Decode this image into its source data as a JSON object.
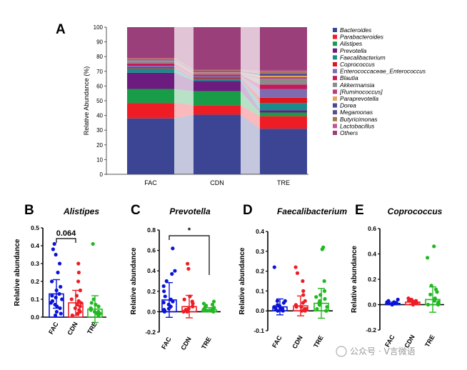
{
  "chart_data": [
    {
      "panel": "A",
      "type": "bar",
      "stacked": true,
      "ylabel": "Relative Abundance (%)",
      "ylim": [
        0,
        100
      ],
      "yticks": [
        "0",
        "10",
        "20",
        "30",
        "40",
        "50",
        "60",
        "70",
        "80",
        "90",
        "100"
      ],
      "categories": [
        "FAC",
        "CDN",
        "TRE"
      ],
      "legend_position": "right",
      "series": [
        {
          "name": "Bacteroides",
          "color": "#3b4593",
          "values": [
            38,
            40.5,
            31
          ]
        },
        {
          "name": "Parabacteroides",
          "color": "#ee1c24",
          "values": [
            10.5,
            6.5,
            8.5
          ]
        },
        {
          "name": "Alistipes",
          "color": "#189c48",
          "values": [
            9.5,
            9.5,
            2.5
          ]
        },
        {
          "name": "Prevotella",
          "color": "#6b1c7e",
          "values": [
            11,
            7,
            1.5
          ]
        },
        {
          "name": "Faecalibacterium",
          "color": "#1b8a8e",
          "values": [
            3,
            1.5,
            5
          ]
        },
        {
          "name": "Coprococcus",
          "color": "#e2141c",
          "values": [
            0.8,
            0.8,
            3.5
          ]
        },
        {
          "name": "Enterococcaceae_Enterococcus",
          "color": "#7f6bb0",
          "values": [
            1,
            1,
            6
          ]
        },
        {
          "name": "Blautia",
          "color": "#c5195a",
          "values": [
            1.5,
            1,
            3
          ]
        },
        {
          "name": "Akkermansia",
          "color": "#8b8b8b",
          "values": [
            1,
            0.5,
            4
          ]
        },
        {
          "name": "[Ruminococcus]",
          "color": "#b83a7c",
          "values": [
            0.5,
            0.5,
            1
          ]
        },
        {
          "name": "Paraprevotella",
          "color": "#e8a35a",
          "values": [
            0.5,
            0.5,
            1
          ]
        },
        {
          "name": "Dorea",
          "color": "#464a9a",
          "values": [
            0.5,
            0.5,
            1
          ]
        },
        {
          "name": "Megamonas",
          "color": "#54508a",
          "values": [
            0.3,
            0.3,
            0.5
          ]
        },
        {
          "name": "Butyricimonas",
          "color": "#a2784b",
          "values": [
            0.5,
            0.5,
            1
          ]
        },
        {
          "name": "Lactobacillus",
          "color": "#c4548e",
          "values": [
            0.5,
            0.5,
            1
          ]
        },
        {
          "name": "Others",
          "color": "#9b3f7a",
          "values": [
            20.9,
            28.9,
            29.5
          ]
        }
      ]
    },
    {
      "panel": "B",
      "type": "bar",
      "title": "Alistipes",
      "ylabel": "Relative abundance",
      "ylim": [
        0,
        0.5
      ],
      "yticks": [
        "0.0",
        "0.1",
        "0.2",
        "0.3",
        "0.4",
        "0.5"
      ],
      "categories": [
        "FAC",
        "CDN",
        "TRE"
      ],
      "colors": [
        "#0a14d8",
        "#ee1c24",
        "#22b822"
      ],
      "values": [
        0.13,
        0.08,
        0.045
      ],
      "error": [
        0.08,
        0.07,
        0.075
      ],
      "points": [
        [
          0.01,
          0.02,
          0.03,
          0.05,
          0.06,
          0.07,
          0.08,
          0.09,
          0.1,
          0.11,
          0.12,
          0.13,
          0.15,
          0.17,
          0.2,
          0.25,
          0.3,
          0.35,
          0.38,
          0.41
        ],
        [
          0.01,
          0.02,
          0.03,
          0.04,
          0.05,
          0.06,
          0.07,
          0.08,
          0.09,
          0.1,
          0.12,
          0.15,
          0.2,
          0.25,
          0.3
        ],
        [
          0.01,
          0.02,
          0.02,
          0.03,
          0.03,
          0.04,
          0.05,
          0.06,
          0.07,
          0.08,
          0.1,
          0.41
        ]
      ],
      "significance": "0.064"
    },
    {
      "panel": "C",
      "type": "bar",
      "title": "Prevotella",
      "ylabel": "Relative abundance",
      "ylim": [
        -0.2,
        0.8
      ],
      "yticks": [
        "-0.2",
        "0.0",
        "0.2",
        "0.4",
        "0.6",
        "0.8"
      ],
      "categories": [
        "FAC",
        "CDN",
        "TRE"
      ],
      "colors": [
        "#0a14d8",
        "#ee1c24",
        "#22b822"
      ],
      "values": [
        0.115,
        0.05,
        0.02
      ],
      "error": [
        0.17,
        0.11,
        0.02
      ],
      "points": [
        [
          0.0,
          0.01,
          0.02,
          0.03,
          0.05,
          0.07,
          0.09,
          0.1,
          0.12,
          0.15,
          0.2,
          0.25,
          0.3,
          0.37,
          0.4,
          0.62
        ],
        [
          0.0,
          0.0,
          0.01,
          0.02,
          0.03,
          0.05,
          0.08,
          0.1,
          0.12,
          0.15,
          0.47,
          0.42
        ],
        [
          0.0,
          0.01,
          0.01,
          0.02,
          0.02,
          0.03,
          0.03,
          0.04,
          0.05,
          0.06,
          0.07,
          0.08,
          0.1
        ]
      ],
      "significance": "*"
    },
    {
      "panel": "D",
      "type": "bar",
      "title": "Faecalibacterium",
      "ylabel": "Relative abundance",
      "ylim": [
        -0.1,
        0.4
      ],
      "yticks": [
        "-0.1",
        "0.0",
        "0.1",
        "0.2",
        "0.3",
        "0.4"
      ],
      "categories": [
        "FAC",
        "CDN",
        "TRE"
      ],
      "colors": [
        "#0a14d8",
        "#ee1c24",
        "#22b822"
      ],
      "values": [
        0.02,
        0.025,
        0.038
      ],
      "error": [
        0.04,
        0.05,
        0.075
      ],
      "points": [
        [
          0.0,
          0.0,
          0.005,
          0.01,
          0.01,
          0.015,
          0.02,
          0.025,
          0.03,
          0.04,
          0.05,
          0.05,
          0.22
        ],
        [
          0.0,
          0.0,
          0.01,
          0.01,
          0.02,
          0.02,
          0.03,
          0.04,
          0.05,
          0.08,
          0.1,
          0.15,
          0.19,
          0.22
        ],
        [
          0.0,
          0.0,
          0.01,
          0.02,
          0.03,
          0.04,
          0.05,
          0.06,
          0.07,
          0.08,
          0.1,
          0.15,
          0.31,
          0.32
        ]
      ]
    },
    {
      "panel": "E",
      "type": "bar",
      "title": "Coprococcus",
      "ylabel": "Relative abundance",
      "ylim": [
        -0.2,
        0.6
      ],
      "yticks": [
        "-0.2",
        "0.0",
        "0.2",
        "0.4",
        "0.6"
      ],
      "categories": [
        "FAC",
        "CDN",
        "TRE"
      ],
      "colors": [
        "#0a14d8",
        "#ee1c24",
        "#22b822"
      ],
      "values": [
        0.01,
        0.02,
        0.04
      ],
      "error": [
        0.01,
        0.015,
        0.1
      ],
      "points": [
        [
          0.0,
          0.005,
          0.01,
          0.01,
          0.015,
          0.02,
          0.02,
          0.03,
          0.04
        ],
        [
          0.0,
          0.01,
          0.01,
          0.02,
          0.02,
          0.03,
          0.03,
          0.04,
          0.05
        ],
        [
          0.0,
          0.0,
          0.01,
          0.02,
          0.03,
          0.05,
          0.08,
          0.1,
          0.12,
          0.15,
          0.37,
          0.46
        ]
      ]
    }
  ],
  "watermark": "公众号 · V言微语"
}
